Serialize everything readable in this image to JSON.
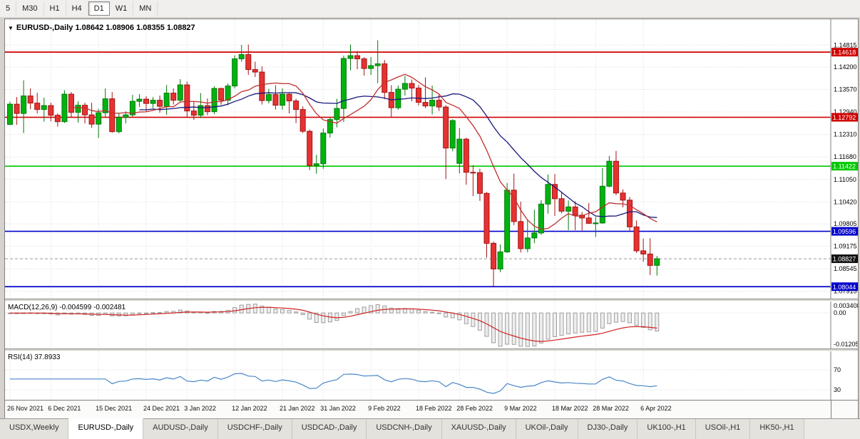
{
  "toolbar": {
    "timeframes": [
      {
        "label": "5",
        "active": false
      },
      {
        "label": "M30",
        "active": false
      },
      {
        "label": "H1",
        "active": false
      },
      {
        "label": "H4",
        "active": false
      },
      {
        "label": "D1",
        "active": true
      },
      {
        "label": "W1",
        "active": false
      },
      {
        "label": "MN",
        "active": false
      }
    ]
  },
  "chart_header": {
    "collapse_icon": "▼",
    "symbol_period": "EURUSD-,Daily",
    "ohlc": "1.08642 1.08906 1.08355 1.08827"
  },
  "chart_data": {
    "type": "candlestick",
    "symbol": "EURUSD-",
    "timeframe": "Daily",
    "price_range": [
      1.0771,
      1.1554
    ],
    "current_bar": {
      "open": 1.08642,
      "high": 1.08906,
      "low": 1.08355,
      "close": 1.08827
    },
    "y_axis_ticks": [
      "1.14815",
      "1.14200",
      "1.13570",
      "1.12940",
      "1.12310",
      "1.11680",
      "1.11050",
      "1.10420",
      "1.09805",
      "1.09175",
      "1.08545",
      "1.07915"
    ],
    "x_ticks": [
      {
        "i": 0,
        "label": "26 Nov 2021"
      },
      {
        "i": 6,
        "label": "6 Dec 2021"
      },
      {
        "i": 13,
        "label": "15 Dec 2021"
      },
      {
        "i": 20,
        "label": "24 Dec 2021"
      },
      {
        "i": 26,
        "label": "3 Jan 2022"
      },
      {
        "i": 33,
        "label": "12 Jan 2022"
      },
      {
        "i": 40,
        "label": "21 Jan 2022"
      },
      {
        "i": 46,
        "label": "31 Jan 2022"
      },
      {
        "i": 53,
        "label": "9 Feb 2022"
      },
      {
        "i": 60,
        "label": "18 Feb 2022"
      },
      {
        "i": 66,
        "label": "28 Feb 2022"
      },
      {
        "i": 73,
        "label": "9 Mar 2022"
      },
      {
        "i": 80,
        "label": "18 Mar 2022"
      },
      {
        "i": 86,
        "label": "28 Mar 2022"
      },
      {
        "i": 93,
        "label": "6 Apr 2022"
      }
    ],
    "hlines": [
      {
        "price": 1.14618,
        "color": "#d00000",
        "label": "1.14618"
      },
      {
        "price": 1.12792,
        "color": "#d00000",
        "label": "1.12792"
      },
      {
        "price": 1.11422,
        "color": "#00c800",
        "label": "1.11422"
      },
      {
        "price": 1.09596,
        "color": "#0000cc",
        "label": "1.09596"
      },
      {
        "price": 1.08044,
        "color": "#0000cc",
        "label": "1.08044"
      }
    ],
    "current_price": {
      "value": 1.08827,
      "label": "1.08827",
      "color": "#111111"
    },
    "moving_averages": [
      {
        "period": 20,
        "color": "#16167a"
      },
      {
        "period": 10,
        "color": "#c03030"
      }
    ],
    "candles": [
      [
        1.1259,
        1.1323,
        1.1258,
        1.1316
      ],
      [
        1.1316,
        1.1336,
        1.1258,
        1.129
      ],
      [
        1.129,
        1.1383,
        1.1235,
        1.1339
      ],
      [
        1.1339,
        1.136,
        1.1302,
        1.1319
      ],
      [
        1.1319,
        1.1348,
        1.129,
        1.1301
      ],
      [
        1.1301,
        1.1334,
        1.1267,
        1.1312
      ],
      [
        1.1312,
        1.132,
        1.1268,
        1.1285
      ],
      [
        1.1285,
        1.129,
        1.1253,
        1.1267
      ],
      [
        1.1267,
        1.1355,
        1.1263,
        1.1344
      ],
      [
        1.1344,
        1.135,
        1.128,
        1.1293
      ],
      [
        1.1293,
        1.1324,
        1.1264,
        1.1313
      ],
      [
        1.1313,
        1.132,
        1.1262,
        1.1286
      ],
      [
        1.1286,
        1.132,
        1.125,
        1.126
      ],
      [
        1.126,
        1.1303,
        1.1221,
        1.1292
      ],
      [
        1.1292,
        1.136,
        1.128,
        1.1331
      ],
      [
        1.1331,
        1.135,
        1.1236,
        1.1239
      ],
      [
        1.1239,
        1.129,
        1.1234,
        1.1279
      ],
      [
        1.1279,
        1.1296,
        1.1262,
        1.1286
      ],
      [
        1.1286,
        1.1342,
        1.1281,
        1.1324
      ],
      [
        1.1324,
        1.1344,
        1.1308,
        1.133
      ],
      [
        1.133,
        1.1338,
        1.1294,
        1.1318
      ],
      [
        1.1318,
        1.1336,
        1.1305,
        1.1327
      ],
      [
        1.1327,
        1.134,
        1.1292,
        1.131
      ],
      [
        1.131,
        1.137,
        1.1286,
        1.1347
      ],
      [
        1.1347,
        1.136,
        1.1315,
        1.1327
      ],
      [
        1.1327,
        1.1386,
        1.132,
        1.137
      ],
      [
        1.137,
        1.1379,
        1.1279,
        1.1297
      ],
      [
        1.1297,
        1.1323,
        1.1272,
        1.1285
      ],
      [
        1.1285,
        1.1347,
        1.1277,
        1.1312
      ],
      [
        1.1312,
        1.1332,
        1.1285,
        1.1295
      ],
      [
        1.1295,
        1.1366,
        1.1288,
        1.136
      ],
      [
        1.136,
        1.1362,
        1.1314,
        1.1327
      ],
      [
        1.1327,
        1.1374,
        1.1313,
        1.1367
      ],
      [
        1.1367,
        1.1453,
        1.136,
        1.1443
      ],
      [
        1.1443,
        1.1482,
        1.1435,
        1.1455
      ],
      [
        1.1455,
        1.1483,
        1.1398,
        1.1413
      ],
      [
        1.1413,
        1.1435,
        1.1392,
        1.1406
      ],
      [
        1.1406,
        1.1422,
        1.1315,
        1.1326
      ],
      [
        1.1326,
        1.1359,
        1.1318,
        1.1343
      ],
      [
        1.1343,
        1.1369,
        1.1301,
        1.1313
      ],
      [
        1.1313,
        1.136,
        1.13,
        1.1344
      ],
      [
        1.1344,
        1.1349,
        1.129,
        1.1325
      ],
      [
        1.1325,
        1.1331,
        1.1263,
        1.1301
      ],
      [
        1.1301,
        1.131,
        1.1235,
        1.124
      ],
      [
        1.124,
        1.1245,
        1.1131,
        1.1144
      ],
      [
        1.1144,
        1.1174,
        1.1121,
        1.1149
      ],
      [
        1.1149,
        1.1248,
        1.1135,
        1.1235
      ],
      [
        1.1235,
        1.1279,
        1.1222,
        1.1273
      ],
      [
        1.1273,
        1.1331,
        1.1251,
        1.1304
      ],
      [
        1.1304,
        1.1452,
        1.1266,
        1.1444
      ],
      [
        1.1444,
        1.1483,
        1.1411,
        1.1452
      ],
      [
        1.1452,
        1.1465,
        1.1414,
        1.1443
      ],
      [
        1.1443,
        1.1448,
        1.1396,
        1.1416
      ],
      [
        1.1416,
        1.1448,
        1.1398,
        1.1424
      ],
      [
        1.1424,
        1.1495,
        1.1375,
        1.1429
      ],
      [
        1.1429,
        1.144,
        1.133,
        1.1349
      ],
      [
        1.1349,
        1.1369,
        1.128,
        1.1306
      ],
      [
        1.1306,
        1.1368,
        1.13,
        1.1358
      ],
      [
        1.1358,
        1.1395,
        1.134,
        1.1374
      ],
      [
        1.1374,
        1.1385,
        1.1324,
        1.1361
      ],
      [
        1.1361,
        1.137,
        1.1312,
        1.1321
      ],
      [
        1.1321,
        1.1391,
        1.1305,
        1.1311
      ],
      [
        1.1311,
        1.1368,
        1.1287,
        1.1327
      ],
      [
        1.1327,
        1.1342,
        1.1297,
        1.1308
      ],
      [
        1.1308,
        1.1313,
        1.1106,
        1.1193
      ],
      [
        1.1193,
        1.1274,
        1.1184,
        1.127
      ],
      [
        1.115,
        1.1249,
        1.1122,
        1.1218
      ],
      [
        1.1218,
        1.1222,
        1.109,
        1.1125
      ],
      [
        1.1125,
        1.1145,
        1.1058,
        1.1124
      ],
      [
        1.1124,
        1.1135,
        1.1045,
        1.1066
      ],
      [
        1.1066,
        1.107,
        1.0886,
        1.0926
      ],
      [
        1.0926,
        1.0931,
        1.0806,
        1.0854
      ],
      [
        1.0854,
        1.0923,
        1.0845,
        1.0902
      ],
      [
        1.0902,
        1.1095,
        1.0899,
        1.1075
      ],
      [
        1.1075,
        1.1121,
        1.0977,
        1.0987
      ],
      [
        1.0987,
        1.1043,
        1.09,
        1.0911
      ],
      [
        1.0911,
        1.0991,
        1.0901,
        1.0941
      ],
      [
        1.0941,
        1.102,
        1.0926,
        1.0955
      ],
      [
        1.0955,
        1.1047,
        1.095,
        1.1036
      ],
      [
        1.1036,
        1.1119,
        1.1009,
        1.1091
      ],
      [
        1.1091,
        1.112,
        1.1003,
        1.1051
      ],
      [
        1.1051,
        1.1071,
        1.101,
        1.1016
      ],
      [
        1.1016,
        1.1046,
        1.0963,
        1.1028
      ],
      [
        1.1028,
        1.1044,
        1.0963,
        1.1005
      ],
      [
        1.1005,
        1.1014,
        1.0962,
        1.0997
      ],
      [
        1.0997,
        1.1039,
        1.098,
        1.0982
      ],
      [
        1.0982,
        1.1,
        1.0944,
        1.0983
      ],
      [
        1.0983,
        1.1137,
        1.0981,
        1.1086
      ],
      [
        1.1086,
        1.1171,
        1.1083,
        1.1156
      ],
      [
        1.1156,
        1.1185,
        1.1061,
        1.1067
      ],
      [
        1.1067,
        1.1077,
        1.1027,
        1.1047
      ],
      [
        1.1047,
        1.1056,
        1.096,
        1.0972
      ],
      [
        1.0972,
        1.099,
        1.0899,
        1.0905
      ],
      [
        1.0905,
        1.0939,
        1.0874,
        1.0896
      ],
      [
        1.0896,
        1.094,
        1.0837,
        1.0864
      ],
      [
        1.08642,
        1.08906,
        1.08355,
        1.08827
      ]
    ]
  },
  "macd": {
    "label": "MACD(12,26,9) -0.004599 -0.002481",
    "main_value": -0.004599,
    "signal_value": -0.002481,
    "axis_max": "0.003408",
    "axis_zero": "0.00",
    "axis_min": "-0.01205"
  },
  "rsi": {
    "label": "RSI(14) 37.8933",
    "value": 37.8933,
    "levels": [
      70,
      30
    ]
  },
  "tabs": [
    {
      "label": "USDX,Weekly",
      "active": false
    },
    {
      "label": "EURUSD-,Daily",
      "active": true
    },
    {
      "label": "AUDUSD-,Daily",
      "active": false
    },
    {
      "label": "USDCHF-,Daily",
      "active": false
    },
    {
      "label": "USDCAD-,Daily",
      "active": false
    },
    {
      "label": "USDCNH-,Daily",
      "active": false
    },
    {
      "label": "XAUUSD-,Daily",
      "active": false
    },
    {
      "label": "UKOil-,Daily",
      "active": false
    },
    {
      "label": "DJ30-,Daily",
      "active": false
    },
    {
      "label": "UK100-,H1",
      "active": false
    },
    {
      "label": "USOil-,H1",
      "active": false
    },
    {
      "label": "HK50-,H1",
      "active": false
    }
  ],
  "colors": {
    "up_fill": "#00b30f",
    "up_stroke": "#007a0a",
    "down_fill": "#e63232",
    "down_stroke": "#a31414",
    "macd_hist_fill": "#ededed",
    "macd_hist_stroke": "#9e9e9e",
    "macd_signal": "#d02020",
    "rsi_line": "#4a86c8",
    "axis_separator": "#808080"
  }
}
